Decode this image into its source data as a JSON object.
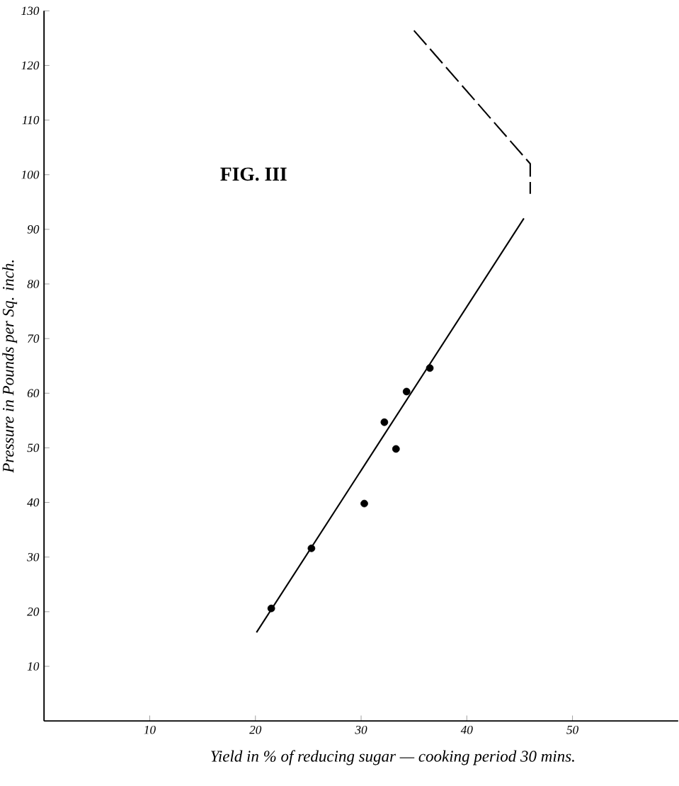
{
  "chart_data": {
    "type": "scatter",
    "xlabel": "Yield in % of reducing sugar — cooking period 30 mins.",
    "ylabel": "Pressure in Pounds per Sq. inch.",
    "annotations": [
      "FIG. III"
    ],
    "xlim": [
      0,
      60
    ],
    "ylim": [
      0,
      130
    ],
    "xticks": [
      10,
      20,
      30,
      40,
      50
    ],
    "yticks": [
      10,
      20,
      30,
      40,
      50,
      60,
      70,
      80,
      90,
      100,
      110,
      120,
      130
    ],
    "series": [
      {
        "marker": "circle",
        "color": "#000000",
        "x": [
          21.5,
          25.3,
          30.3,
          32.2,
          33.3,
          34.3,
          36.5
        ],
        "values": [
          20.6,
          31.6,
          39.8,
          54.7,
          49.8,
          60.3,
          64.6
        ]
      },
      {
        "type": "line",
        "marker": "none",
        "color": "#000000",
        "line_style": "solid",
        "x": [
          20.1,
          45.4
        ],
        "values": [
          16.2,
          92
        ]
      },
      {
        "type": "line",
        "marker": "none",
        "color": "#000000",
        "line_style": "dashed",
        "x": [
          35,
          46,
          46
        ],
        "values": [
          126.4,
          102,
          96.5
        ]
      }
    ]
  }
}
